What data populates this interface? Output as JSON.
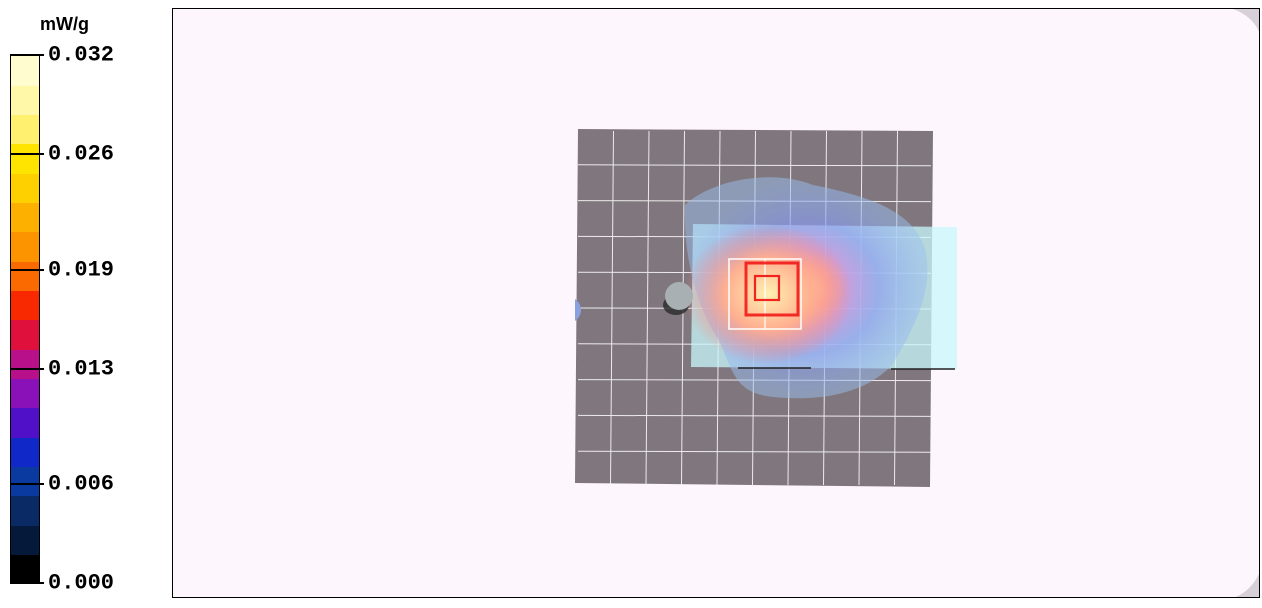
{
  "chart_data": {
    "type": "heatmap",
    "unit_label": "mW/g",
    "colorbar": {
      "min": 0.0,
      "max": 0.032,
      "tick_labels": [
        "0.032",
        "0.026",
        "0.019",
        "0.013",
        "0.006",
        "0.000"
      ],
      "tick_values": [
        0.032,
        0.026,
        0.019,
        0.013,
        0.006,
        0.0
      ],
      "bands": [
        "#000000",
        "#05193a",
        "#0a2a66",
        "#0a3aa0",
        "#1028c8",
        "#5010c8",
        "#8a10b8",
        "#b8108a",
        "#e0103c",
        "#f82800",
        "#fa6a00",
        "#fc9400",
        "#fdb000",
        "#fed000",
        "#ffe400",
        "#fff070",
        "#fff8a8",
        "#fffcd0"
      ]
    },
    "colors": {
      "background": "#fdf7fd",
      "grid_surface": "#7f777d",
      "grid_lines": "#ffffff",
      "zoom_region": "#c8f8fc",
      "hotspot": "#f01010"
    }
  }
}
